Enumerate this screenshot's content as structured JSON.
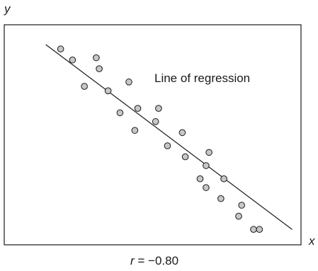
{
  "chart_data": {
    "type": "scatter",
    "title": "",
    "xlabel": "x",
    "ylabel": "y",
    "annotation": "Line of regression",
    "stat": {
      "symbol": "r",
      "equals": " = ",
      "value": "−0.80"
    },
    "grid": false,
    "legend": "none",
    "colors": {
      "point_fill": "#c7c7c7",
      "stroke": "#1a1a1a",
      "frame": "#1a1a1a"
    },
    "xlim": [
      0,
      100
    ],
    "ylim": [
      0,
      100
    ],
    "regression_line": {
      "x": [
        14,
        97
      ],
      "y": [
        91,
        7
      ]
    },
    "points": {
      "x": [
        19,
        23,
        27,
        31,
        32,
        35,
        39,
        42,
        44,
        45,
        51,
        52,
        55,
        60,
        61,
        66,
        68,
        68,
        69,
        73,
        74,
        79,
        80,
        84,
        86
      ],
      "y": [
        89,
        84,
        72,
        85,
        80,
        70,
        60,
        74,
        52,
        62,
        56,
        62,
        45,
        51,
        40,
        30,
        36,
        26,
        42,
        21,
        30,
        13,
        18,
        7,
        7
      ]
    }
  }
}
